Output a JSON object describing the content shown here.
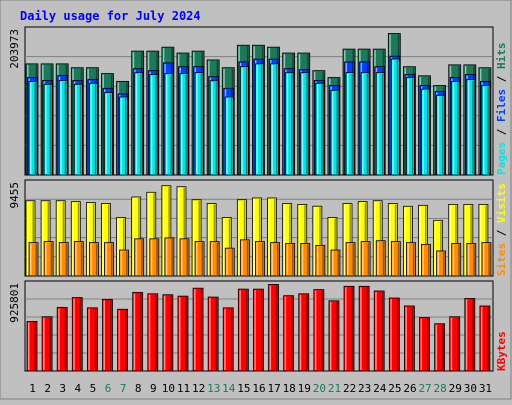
{
  "chart_data": [
    {
      "type": "bar",
      "title": "Daily usage for July 2024",
      "ymax_label": "203973",
      "legend": [
        {
          "name": "Pages",
          "color": "#00e6e6"
        },
        {
          "name": "Files",
          "color": "#0040ff"
        },
        {
          "name": "Hits",
          "color": "#1a7a5a"
        }
      ],
      "categories": [
        "1",
        "2",
        "3",
        "4",
        "5",
        "6",
        "7",
        "8",
        "9",
        "10",
        "11",
        "12",
        "13",
        "14",
        "15",
        "16",
        "17",
        "18",
        "19",
        "20",
        "21",
        "22",
        "23",
        "24",
        "25",
        "26",
        "27",
        "28",
        "29",
        "30",
        "31"
      ],
      "weekend_days": [
        "6",
        "7",
        "13",
        "14",
        "20",
        "21",
        "27",
        "28"
      ],
      "ylim": [
        0,
        203973
      ],
      "series": [
        {
          "name": "Hits",
          "color": "#1a7a5a",
          "values": [
            155300,
            155300,
            155300,
            149900,
            149900,
            141700,
            130800,
            173100,
            173100,
            178600,
            170400,
            173100,
            160800,
            149900,
            181300,
            181300,
            178600,
            170400,
            170400,
            145800,
            136200,
            175900,
            175900,
            175900,
            197700,
            151300,
            138600,
            125000,
            153900,
            153900,
            149900
          ]
        },
        {
          "name": "Files",
          "color": "#0040ff",
          "values": [
            136200,
            132100,
            138900,
            132100,
            133400,
            121100,
            113300,
            148500,
            145800,
            156600,
            151300,
            151300,
            137500,
            121100,
            158000,
            161900,
            161900,
            148500,
            147100,
            132100,
            125100,
            158000,
            158000,
            151300,
            166000,
            140300,
            125100,
            116700,
            136200,
            140300,
            130800
          ]
        },
        {
          "name": "Pages",
          "color": "#00e6e6",
          "values": [
            130800,
            126700,
            132100,
            126700,
            128100,
            115200,
            109000,
            142900,
            140300,
            141700,
            141700,
            143000,
            131700,
            109000,
            151300,
            155300,
            155300,
            142900,
            142900,
            128100,
            118300,
            143000,
            143000,
            143000,
            162100,
            136200,
            120000,
            111300,
            130800,
            133400,
            125100
          ]
        }
      ]
    },
    {
      "type": "bar",
      "ymax_label": "9455",
      "legend": [
        {
          "name": "Sites",
          "color": "#ff8c00"
        },
        {
          "name": "Visits",
          "color": "#ffff00"
        }
      ],
      "ylim": [
        0,
        9455
      ],
      "series": [
        {
          "name": "Visits",
          "color": "#ffff00",
          "values": [
            7570,
            7570,
            7570,
            7480,
            7380,
            7290,
            5880,
            7950,
            8420,
            9080,
            8980,
            7670,
            7290,
            5880,
            7670,
            7850,
            7850,
            7290,
            7200,
            7020,
            5880,
            7290,
            7480,
            7570,
            7290,
            7010,
            7110,
            5600,
            7200,
            7200,
            7200
          ]
        },
        {
          "name": "Sites",
          "color": "#ff8c00",
          "values": [
            3360,
            3460,
            3360,
            3460,
            3360,
            3360,
            2610,
            3740,
            3740,
            3830,
            3740,
            3460,
            3460,
            2800,
            3640,
            3460,
            3360,
            3270,
            3270,
            3080,
            2610,
            3360,
            3460,
            3550,
            3460,
            3360,
            3180,
            2520,
            3270,
            3270,
            3360
          ]
        }
      ]
    },
    {
      "type": "bar",
      "ymax_label": "925801",
      "legend": [
        {
          "name": "KBytes",
          "color": "#ff0000"
        }
      ],
      "ylim": [
        0,
        925801
      ],
      "series": [
        {
          "name": "KBytes",
          "color": "#ff0000",
          "values": [
            521700,
            571000,
            669500,
            772900,
            664600,
            753200,
            649800,
            827100,
            812300,
            802400,
            787600,
            871300,
            777800,
            664600,
            861500,
            861500,
            910800,
            792500,
            812300,
            856600,
            738400,
            891100,
            891100,
            841900,
            767900,
            684300,
            561200,
            497100,
            571000,
            763000,
            684300
          ]
        }
      ]
    }
  ]
}
